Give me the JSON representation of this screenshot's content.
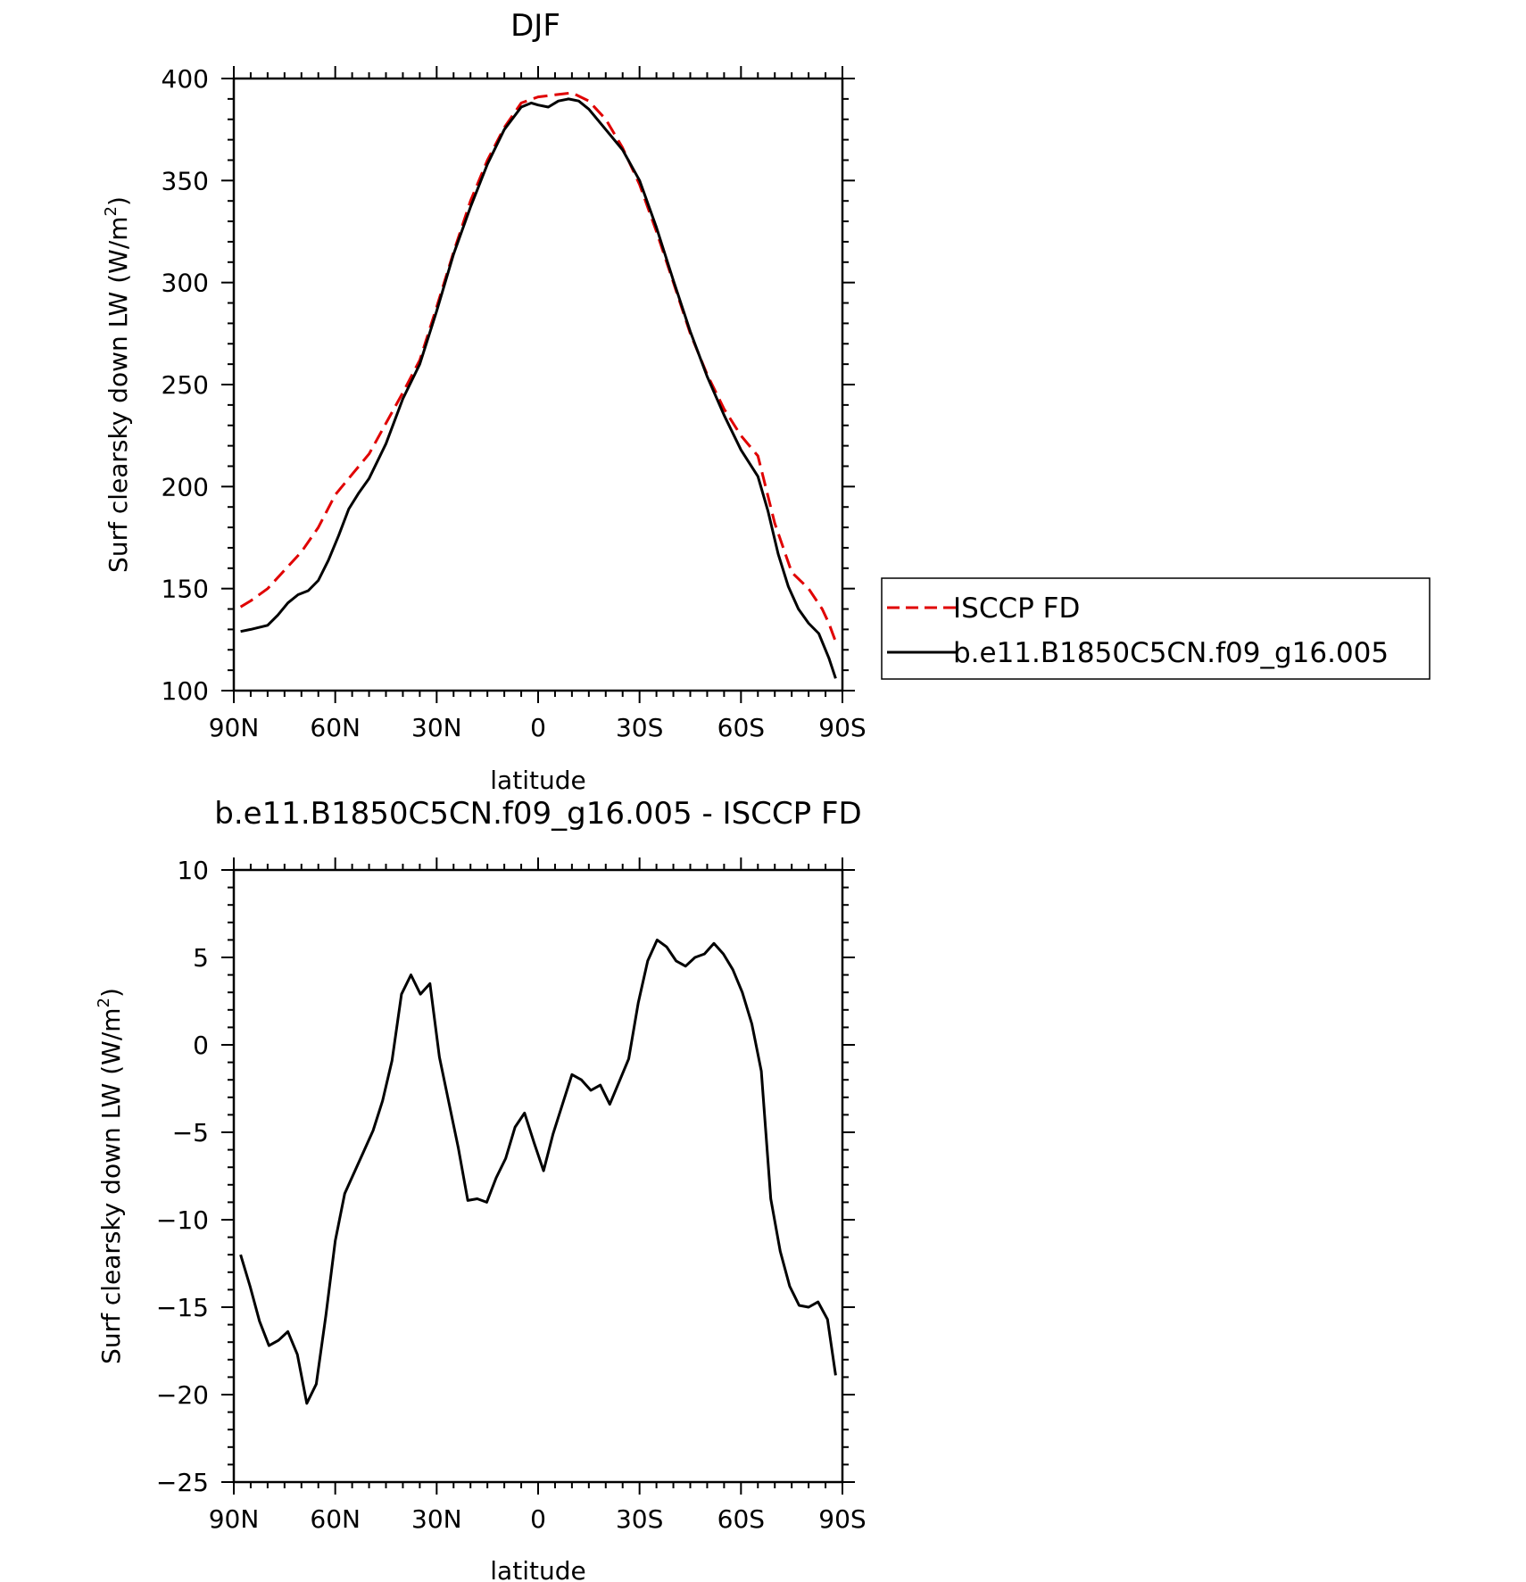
{
  "chart_data": [
    {
      "type": "line",
      "title": "DJF",
      "xlabel": "latitude",
      "ylabel": "Surf clearsky down LW (W/m²)",
      "ylabel_main": "Surf clearsky down LW (W/m",
      "ylabel_sup": "2",
      "ylabel_end": ")",
      "xlim": [
        90,
        -90
      ],
      "ylim": [
        100,
        400
      ],
      "x_ticks": [
        90,
        60,
        30,
        0,
        -30,
        -60,
        -90
      ],
      "x_tick_labels": [
        "90N",
        "60N",
        "30N",
        "0",
        "30S",
        "60S",
        "90S"
      ],
      "y_ticks": [
        100,
        150,
        200,
        250,
        300,
        350,
        400
      ],
      "y_tick_labels": [
        "100",
        "150",
        "200",
        "250",
        "300",
        "350",
        "400"
      ],
      "legend": "right",
      "series": [
        {
          "name": "ISCCP FD",
          "color": "#e00000",
          "dash": "dashed",
          "x": [
            88,
            85,
            80,
            75,
            70,
            65,
            60,
            55,
            50,
            45,
            40,
            35,
            30,
            25,
            20,
            15,
            10,
            5,
            0,
            -5,
            -10,
            -15,
            -20,
            -25,
            -30,
            -35,
            -40,
            -45,
            -50,
            -55,
            -60,
            -65,
            -70,
            -75,
            -80,
            -84,
            -86,
            -88
          ],
          "y": [
            141,
            144,
            150,
            159,
            168,
            180,
            196,
            206,
            216,
            231,
            246,
            262,
            288,
            315,
            340,
            360,
            376,
            388,
            391,
            392,
            393,
            389,
            380,
            366,
            348,
            325,
            300,
            275,
            255,
            238,
            225,
            215,
            182,
            158,
            150,
            140,
            133,
            124
          ]
        },
        {
          "name": "b.e11.B1850C5CN.f09_g16.005",
          "color": "#000000",
          "dash": "solid",
          "x": [
            88,
            85,
            80,
            77,
            74,
            71,
            68,
            65,
            62,
            59,
            56,
            53,
            50,
            45,
            40,
            35,
            30,
            25,
            20,
            15,
            10,
            5,
            2,
            0,
            -3,
            -6,
            -9,
            -12,
            -15,
            -20,
            -25,
            -30,
            -35,
            -40,
            -45,
            -50,
            -55,
            -60,
            -65,
            -68,
            -71,
            -74,
            -77,
            -80,
            -83,
            -86,
            -88
          ],
          "y": [
            129,
            130,
            132,
            137,
            143,
            147,
            149,
            154,
            164,
            176,
            189,
            197,
            204,
            221,
            243,
            260,
            286,
            314,
            337,
            358,
            375,
            386,
            388,
            387,
            386,
            389,
            390,
            389,
            385,
            375,
            365,
            350,
            327,
            301,
            276,
            254,
            235,
            218,
            205,
            188,
            167,
            151,
            140,
            133,
            128,
            116,
            106
          ]
        }
      ]
    },
    {
      "type": "line",
      "title": "b.e11.B1850C5CN.f09_g16.005 - ISCCP FD",
      "xlabel": "latitude",
      "ylabel": "Surf clearsky down LW (W/m²)",
      "ylabel_main": "Surf clearsky down LW (W/m",
      "ylabel_sup": "2",
      "ylabel_end": ")",
      "xlim": [
        90,
        -90
      ],
      "ylim": [
        -25,
        10
      ],
      "x_ticks": [
        90,
        60,
        30,
        0,
        -30,
        -60,
        -90
      ],
      "x_tick_labels": [
        "90N",
        "60N",
        "30N",
        "0",
        "30S",
        "60S",
        "90S"
      ],
      "y_ticks": [
        -25,
        -20,
        -15,
        -10,
        -5,
        0,
        5,
        10
      ],
      "y_tick_labels": [
        "−25",
        "−20",
        "−15",
        "−10",
        "−5",
        "0",
        "5",
        "10"
      ],
      "series": [
        {
          "name": "",
          "color": "#000000",
          "dash": "solid",
          "x": [
            88,
            85.2,
            82.4,
            79.6,
            76.8,
            74,
            71.2,
            68.4,
            65.6,
            62.8,
            60,
            57.2,
            54.4,
            51.6,
            48.8,
            46,
            43.2,
            40.4,
            37.6,
            34.8,
            32,
            29.2,
            26.4,
            23.6,
            20.8,
            18,
            15.2,
            12.4,
            9.6,
            6.8,
            4,
            1.2,
            -1.6,
            -4.4,
            -7.2,
            -10,
            -12.8,
            -15.6,
            -18.4,
            -21.2,
            -24,
            -26.8,
            -29.6,
            -32.4,
            -35.2,
            -38,
            -40.8,
            -43.6,
            -46.4,
            -49.2,
            -52,
            -54.8,
            -57.6,
            -60.4,
            -63.2,
            -66,
            -68.8,
            -71.6,
            -74.4,
            -77.2,
            -80,
            -82.8,
            -85.6,
            -88
          ],
          "y": [
            -12,
            -13.8,
            -15.8,
            -17.2,
            -16.9,
            -16.4,
            -17.7,
            -20.5,
            -19.4,
            -15.5,
            -11.2,
            -8.5,
            -7.3,
            -6.1,
            -4.9,
            -3.2,
            -0.9,
            2.9,
            4.0,
            2.9,
            3.5,
            -0.7,
            -3.3,
            -5.9,
            -8.9,
            -8.8,
            -9.0,
            -7.6,
            -6.5,
            -4.7,
            -3.9,
            -5.6,
            -7.2,
            -5.1,
            -3.4,
            -1.7,
            -2.0,
            -2.6,
            -2.3,
            -3.4,
            -2.1,
            -0.8,
            2.4,
            4.8,
            6.0,
            5.6,
            4.8,
            4.5,
            5.0,
            5.2,
            5.8,
            5.2,
            4.3,
            3.0,
            1.2,
            -1.5,
            -8.8,
            -11.8,
            -13.8,
            -14.9,
            -15.0,
            -14.7,
            -15.7,
            -18.9
          ]
        }
      ]
    }
  ]
}
